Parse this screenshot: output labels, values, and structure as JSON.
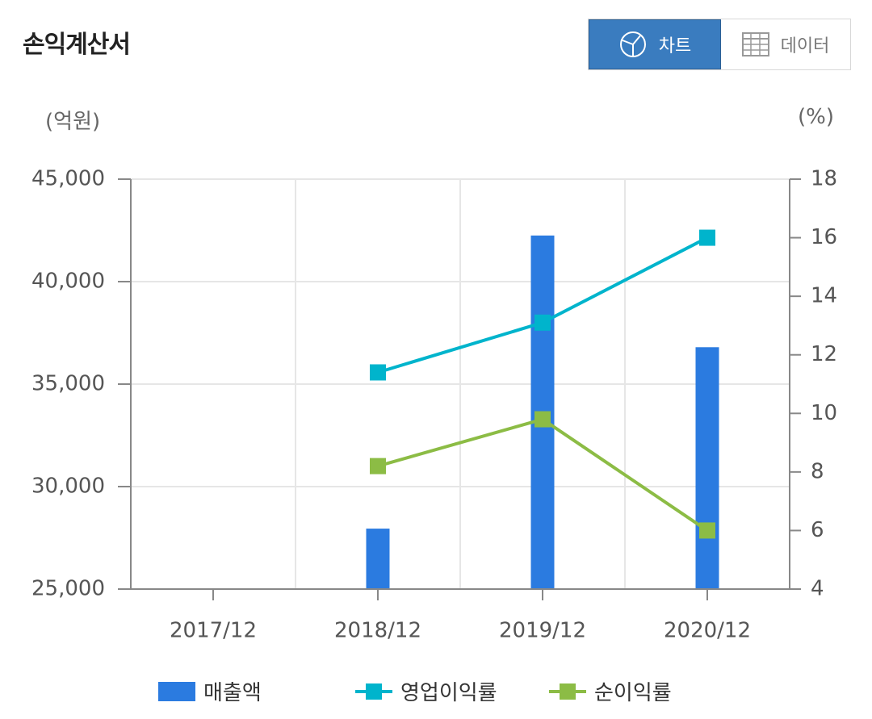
{
  "header": {
    "title": "손익계산서",
    "chart_label": "차트",
    "data_label": "데이터"
  },
  "colors": {
    "bar": "#2b7be0",
    "op_margin": "#00b4cc",
    "net_margin": "#8cbc45",
    "active_button": "#3a7cbf"
  },
  "chart_data": {
    "type": "bar",
    "categories": [
      "2017/12",
      "2018/12",
      "2019/12",
      "2020/12"
    ],
    "y_left": {
      "unit": "(억원)",
      "range": [
        25000,
        45000
      ],
      "ticks": [
        "25,000",
        "30,000",
        "35,000",
        "40,000",
        "45,000"
      ]
    },
    "y_right": {
      "unit": "(%)",
      "range": [
        4,
        18
      ],
      "ticks": [
        "4",
        "6",
        "8",
        "10",
        "12",
        "14",
        "16",
        "18"
      ]
    },
    "grid": true,
    "legend_position": "bottom",
    "series": [
      {
        "name": "매출액",
        "type": "bar",
        "axis": "left",
        "values": [
          null,
          27950,
          42250,
          36800
        ]
      },
      {
        "name": "영업이익률",
        "type": "line",
        "axis": "right",
        "values": [
          null,
          11.4,
          13.1,
          16.0
        ]
      },
      {
        "name": "순이익률",
        "type": "line",
        "axis": "right",
        "values": [
          null,
          8.2,
          9.8,
          6.0
        ]
      }
    ]
  }
}
